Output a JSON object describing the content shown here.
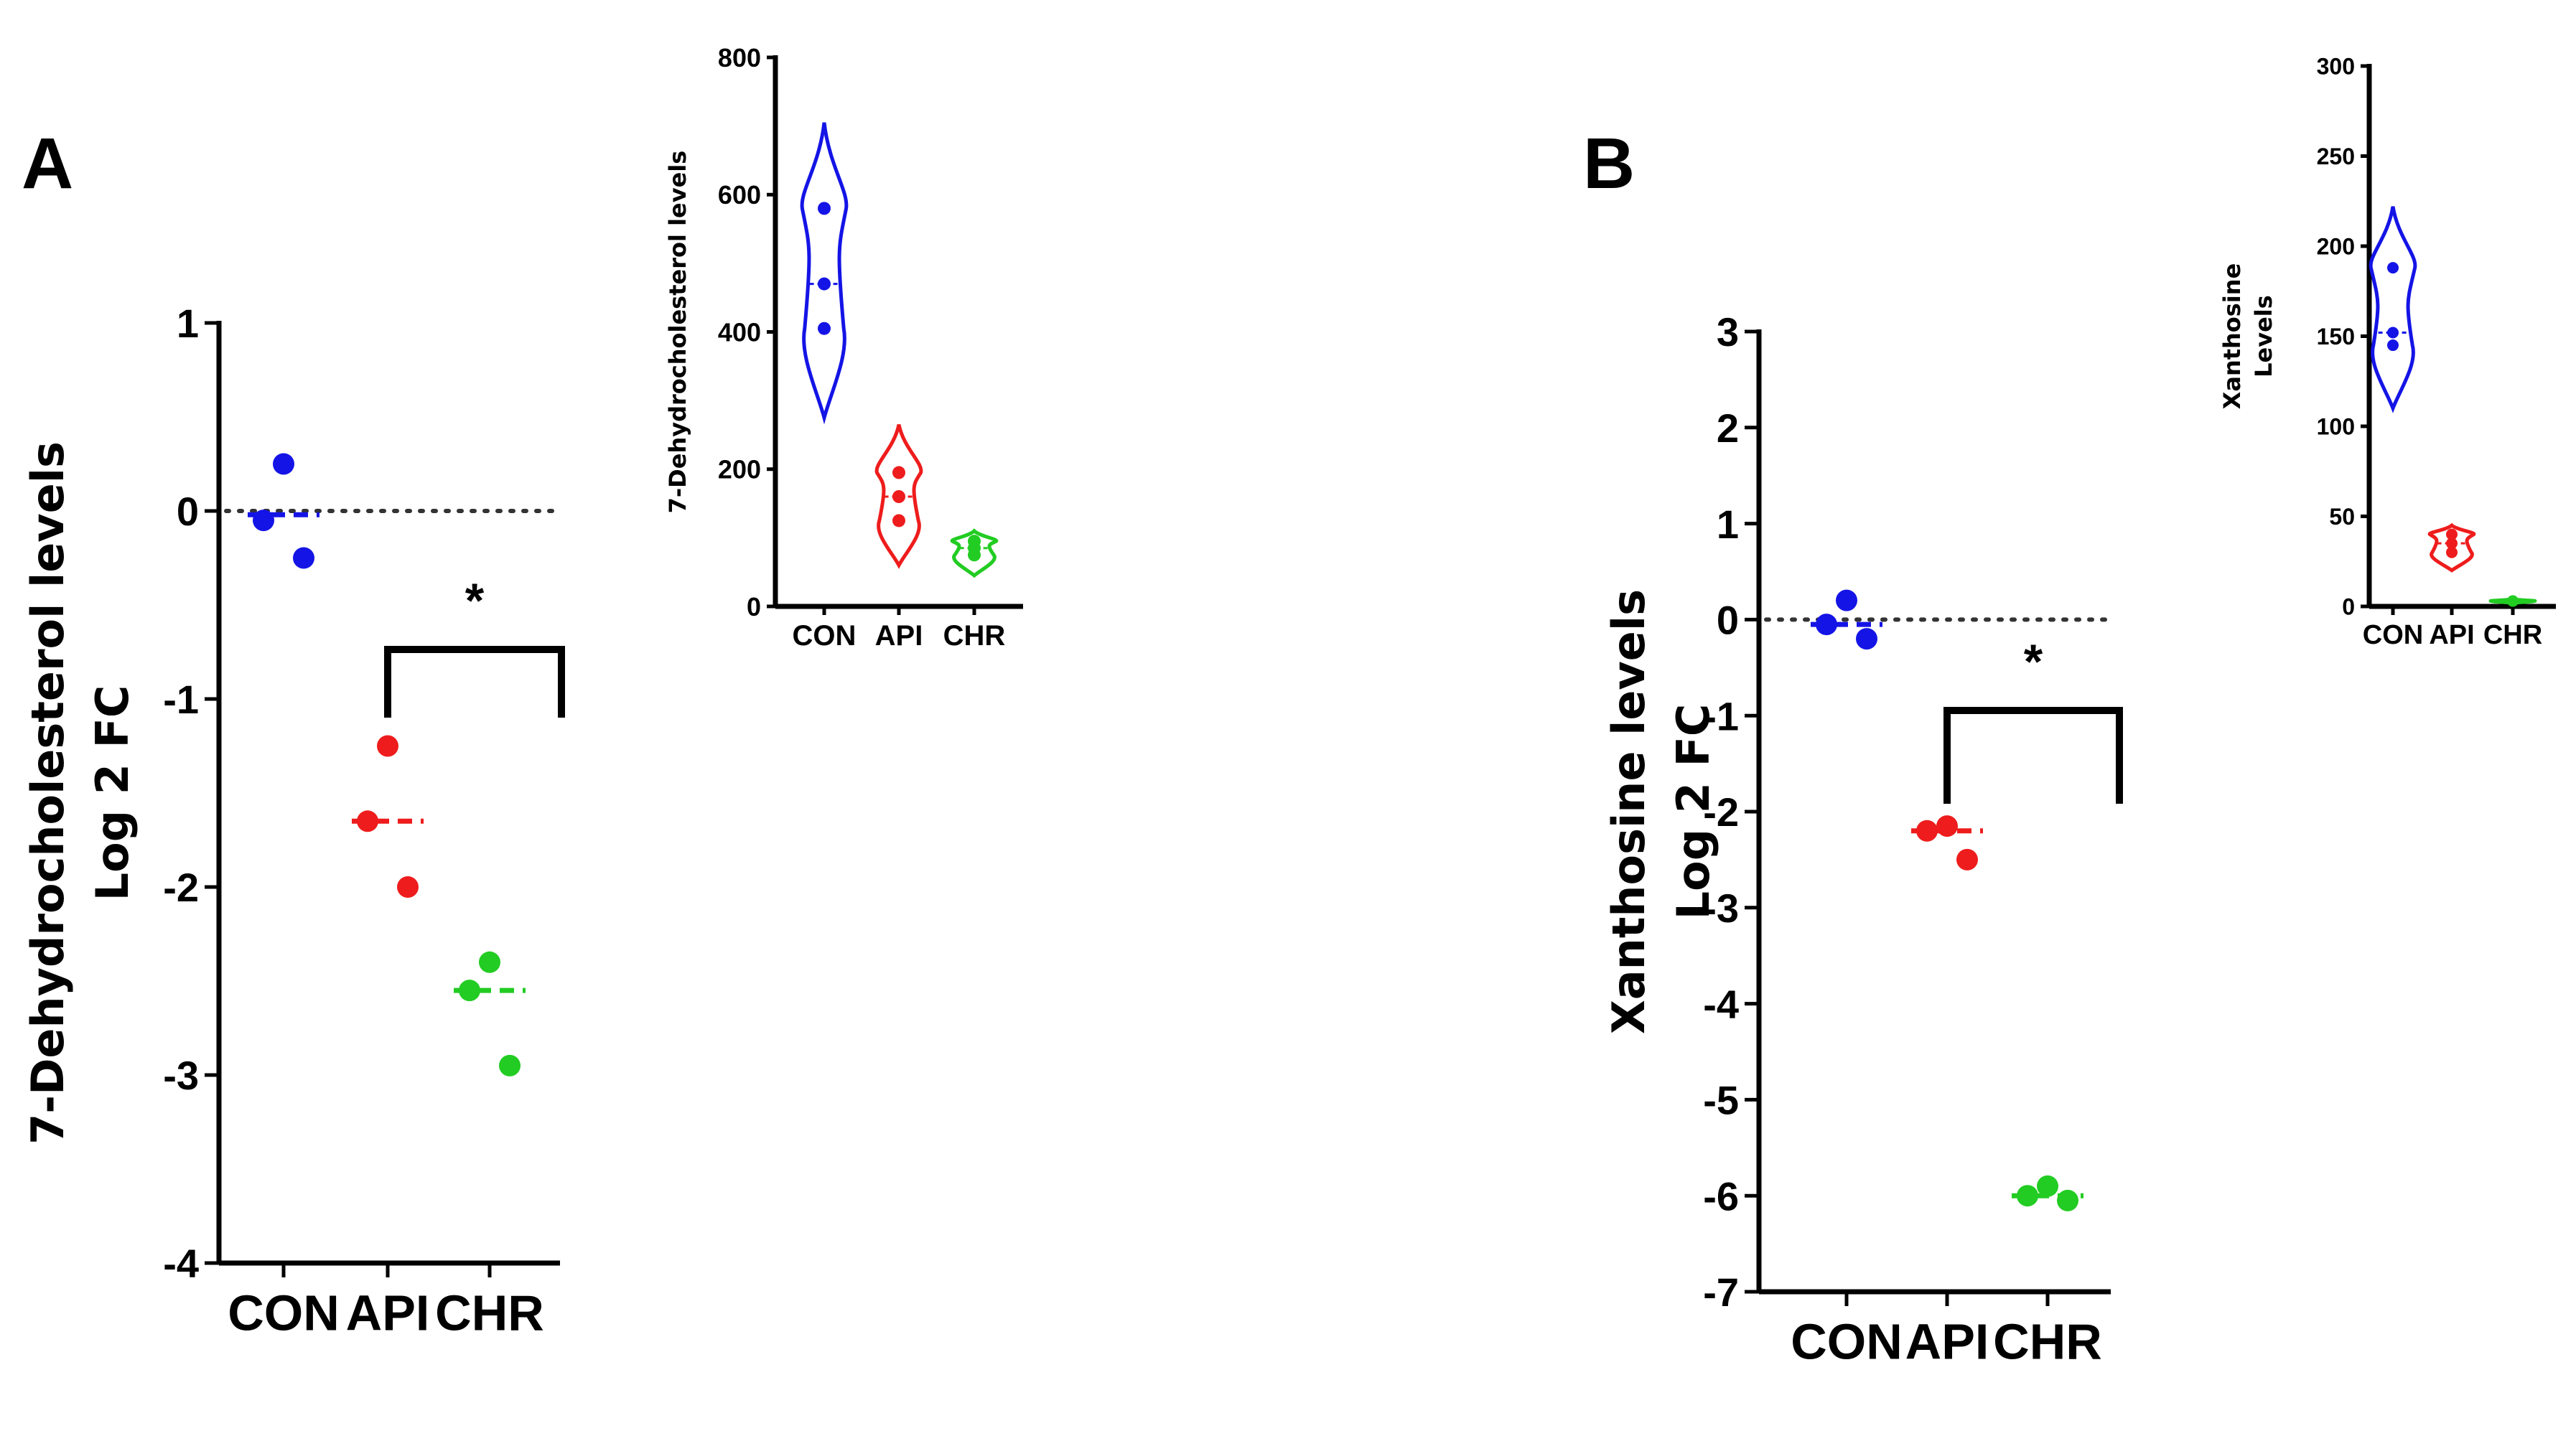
{
  "panels": [
    {
      "letter": "A"
    },
    {
      "letter": "B"
    }
  ],
  "colors": {
    "CON": "#1414e6",
    "API": "#ee1c1c",
    "CHR": "#22cc22",
    "axis": "#000000"
  },
  "chart_data": [
    {
      "id": "A-main",
      "type": "scatter",
      "panel": "A",
      "ylabel_line1": "7-Dehydrocholesterol levels",
      "ylabel_line2": "Log 2 FC",
      "categories": [
        "CON",
        "API",
        "CHR"
      ],
      "ylim": [
        -4,
        1
      ],
      "yticks": [
        1,
        0,
        -1,
        -2,
        -3,
        -4
      ],
      "reference_line": 0,
      "series": [
        {
          "category": "CON",
          "values": [
            0.25,
            -0.05,
            -0.25
          ],
          "mean": -0.02
        },
        {
          "category": "API",
          "values": [
            -1.25,
            -1.65,
            -2.0
          ],
          "mean": -1.65
        },
        {
          "category": "CHR",
          "values": [
            -2.4,
            -2.55,
            -2.95
          ],
          "mean": -2.55
        }
      ],
      "significance": {
        "from": "API",
        "to": "CHR",
        "label": "*"
      }
    },
    {
      "id": "A-inset",
      "type": "violin",
      "panel": "A",
      "ylabel": "7-Dehydrocholesterol levels",
      "categories": [
        "CON",
        "API",
        "CHR"
      ],
      "ylim": [
        0,
        800
      ],
      "yticks": [
        800,
        600,
        400,
        200,
        0
      ],
      "series": [
        {
          "category": "CON",
          "values": [
            580,
            470,
            405
          ],
          "min": 275,
          "max": 705
        },
        {
          "category": "API",
          "values": [
            195,
            160,
            125
          ],
          "min": 60,
          "max": 265
        },
        {
          "category": "CHR",
          "values": [
            95,
            85,
            75
          ],
          "min": 45,
          "max": 110
        }
      ]
    },
    {
      "id": "B-main",
      "type": "scatter",
      "panel": "B",
      "ylabel_line1": "Xanthosine levels",
      "ylabel_line2": "Log 2 FC",
      "categories": [
        "CON",
        "API",
        "CHR"
      ],
      "ylim": [
        -7,
        3
      ],
      "yticks": [
        3,
        2,
        1,
        0,
        -1,
        -2,
        -3,
        -4,
        -5,
        -6,
        -7
      ],
      "reference_line": 0,
      "series": [
        {
          "category": "CON",
          "values": [
            0.2,
            -0.05,
            -0.2
          ],
          "mean": -0.05
        },
        {
          "category": "API",
          "values": [
            -2.15,
            -2.2,
            -2.5
          ],
          "mean": -2.2
        },
        {
          "category": "CHR",
          "values": [
            -5.9,
            -6.0,
            -6.05
          ],
          "mean": -6.0
        }
      ],
      "significance": {
        "from": "API",
        "to": "CHR",
        "label": "*"
      }
    },
    {
      "id": "B-inset",
      "type": "violin",
      "panel": "B",
      "ylabel_line1": "Xanthosine",
      "ylabel_line2": "Levels",
      "categories": [
        "CON",
        "API",
        "CHR"
      ],
      "ylim": [
        0,
        300
      ],
      "yticks": [
        300,
        250,
        200,
        150,
        100,
        50,
        0
      ],
      "series": [
        {
          "category": "CON",
          "values": [
            188,
            152,
            145
          ],
          "min": 110,
          "max": 222
        },
        {
          "category": "API",
          "values": [
            40,
            35,
            30
          ],
          "min": 20,
          "max": 45
        },
        {
          "category": "CHR",
          "values": [
            3,
            3,
            3
          ],
          "min": 2,
          "max": 4
        }
      ]
    }
  ]
}
